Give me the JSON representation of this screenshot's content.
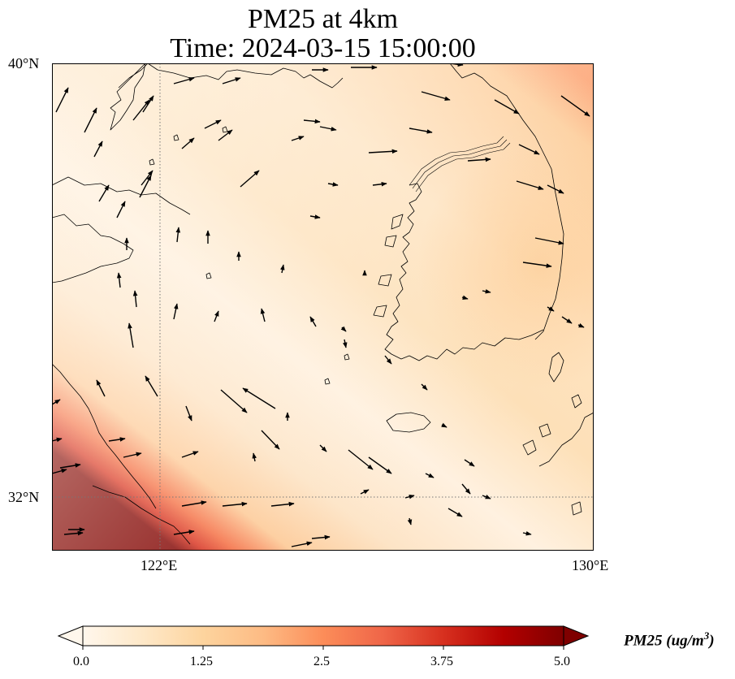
{
  "title": {
    "line1": "PM25 at 4km",
    "line2": "Time: 2024-03-15 15:00:00"
  },
  "axes": {
    "lon_ticks": [
      "122°E",
      "130°E"
    ],
    "lat_ticks": [
      "40°N",
      "32°N"
    ],
    "lon_range": [
      120,
      130
    ],
    "lat_range": [
      31,
      40
    ]
  },
  "colorbar": {
    "label": "PM25 (ug/m",
    "label_sup": "3",
    "label_end": ")",
    "ticks": [
      "0.0",
      "1.25",
      "2.5",
      "3.75",
      "5.0"
    ],
    "min": 0,
    "max": 5,
    "extend": "both",
    "colormap": "OrRd",
    "colors": [
      "#fff7ec",
      "#fee8c8",
      "#fdd49e",
      "#fdbb84",
      "#fc8d59",
      "#ef6548",
      "#d7301f",
      "#b30000",
      "#7f0000"
    ]
  },
  "map": {
    "coastline_color": "#000000",
    "gridline_color": "#777777",
    "gridlines": "dotted at 122°E and 32°N"
  }
}
